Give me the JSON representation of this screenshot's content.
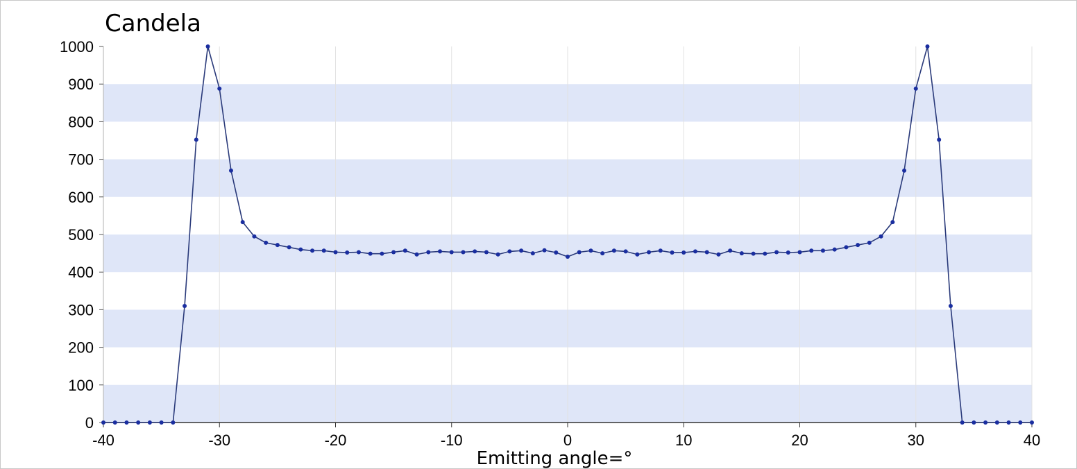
{
  "chart_data": {
    "type": "line",
    "title": "Candela",
    "xlabel": "Emitting angle=°",
    "ylabel": "",
    "xlim": [
      -40,
      40
    ],
    "ylim": [
      0,
      1000
    ],
    "xticks": [
      -40,
      -30,
      -20,
      -10,
      0,
      10,
      20,
      30,
      40
    ],
    "yticks": [
      0,
      100,
      200,
      300,
      400,
      500,
      600,
      700,
      800,
      900,
      1000
    ],
    "grid": "vertical lines, alternating horizontal bands",
    "band_color": "#dfe6f8",
    "line_color": "#2a3a7a",
    "marker_color": "#1a2ea0",
    "series": [
      {
        "x": [
          -40,
          -39,
          -38,
          -37,
          -36,
          -35,
          -34,
          -33,
          -32,
          -31,
          -30,
          -29,
          -28,
          -27,
          -26,
          -25,
          -24,
          -23,
          -22,
          -21,
          -20,
          -19,
          -18,
          -17,
          -16,
          -15,
          -14,
          -13,
          -12,
          -11,
          -10,
          -9,
          -8,
          -7,
          -6,
          -5,
          -4,
          -3,
          -2,
          -1,
          0,
          1,
          2,
          3,
          4,
          5,
          6,
          7,
          8,
          9,
          10,
          11,
          12,
          13,
          14,
          15,
          16,
          17,
          18,
          19,
          20,
          21,
          22,
          23,
          24,
          25,
          26,
          27,
          28,
          29,
          30,
          31,
          32,
          33,
          34,
          35,
          36,
          37,
          38,
          39,
          40
        ],
        "y": [
          0,
          0,
          0,
          0,
          0,
          0,
          0,
          310,
          752,
          1000,
          888,
          670,
          533,
          495,
          478,
          472,
          466,
          460,
          457,
          457,
          453,
          452,
          453,
          449,
          449,
          453,
          457,
          447,
          453,
          455,
          453,
          453,
          455,
          453,
          447,
          455,
          457,
          450,
          458,
          452,
          441,
          453,
          457,
          450,
          457,
          455,
          447,
          453,
          457,
          452,
          452,
          455,
          453,
          447,
          457,
          450,
          449,
          449,
          453,
          452,
          453,
          457,
          457,
          460,
          466,
          472,
          478,
          495,
          533,
          670,
          888,
          1000,
          752,
          310,
          0,
          0,
          0,
          0,
          0,
          0,
          0
        ]
      }
    ]
  }
}
